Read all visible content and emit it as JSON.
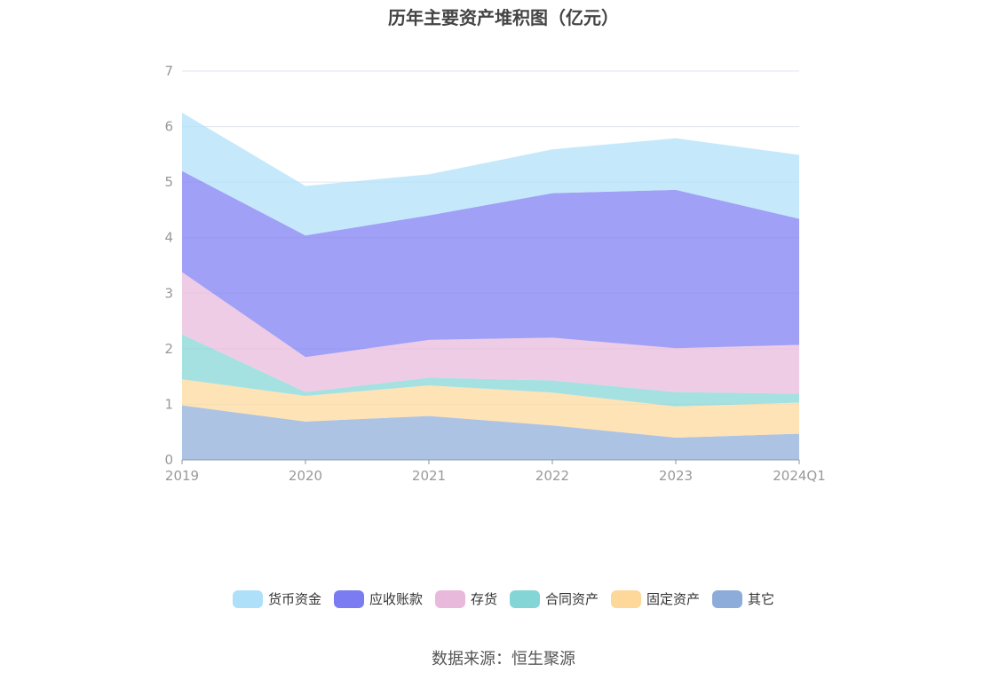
{
  "title": "历年主要资产堆积图（亿元）",
  "source": "数据来源：恒生聚源",
  "chart_data": {
    "type": "area",
    "stacked": true,
    "title": "历年主要资产堆积图（亿元）",
    "categories": [
      "2019",
      "2020",
      "2021",
      "2022",
      "2023",
      "2024Q1"
    ],
    "ylim": [
      0,
      7
    ],
    "yticks": [
      "0",
      "1",
      "2",
      "3",
      "4",
      "5",
      "6",
      "7"
    ],
    "grid": true,
    "legend_position": "bottom",
    "series": [
      {
        "name": "其它",
        "color": "#8eacd9",
        "values": [
          0.98,
          0.69,
          0.79,
          0.62,
          0.4,
          0.47
        ]
      },
      {
        "name": "固定资产",
        "color": "#fdd89a",
        "values": [
          0.47,
          0.46,
          0.55,
          0.59,
          0.56,
          0.56
        ]
      },
      {
        "name": "合同资产",
        "color": "#84d6d6",
        "values": [
          0.81,
          0.07,
          0.14,
          0.22,
          0.26,
          0.16
        ]
      },
      {
        "name": "存货",
        "color": "#e9b9db",
        "values": [
          1.12,
          0.63,
          0.68,
          0.77,
          0.79,
          0.88
        ]
      },
      {
        "name": "应收账款",
        "color": "#7b7bf2",
        "values": [
          1.82,
          2.19,
          2.24,
          2.6,
          2.85,
          2.27
        ]
      },
      {
        "name": "货币资金",
        "color": "#aee0f9",
        "values": [
          1.05,
          0.89,
          0.74,
          0.79,
          0.93,
          1.15
        ]
      }
    ],
    "legend_order": [
      "货币资金",
      "应收账款",
      "存货",
      "合同资产",
      "固定资产",
      "其它"
    ]
  }
}
